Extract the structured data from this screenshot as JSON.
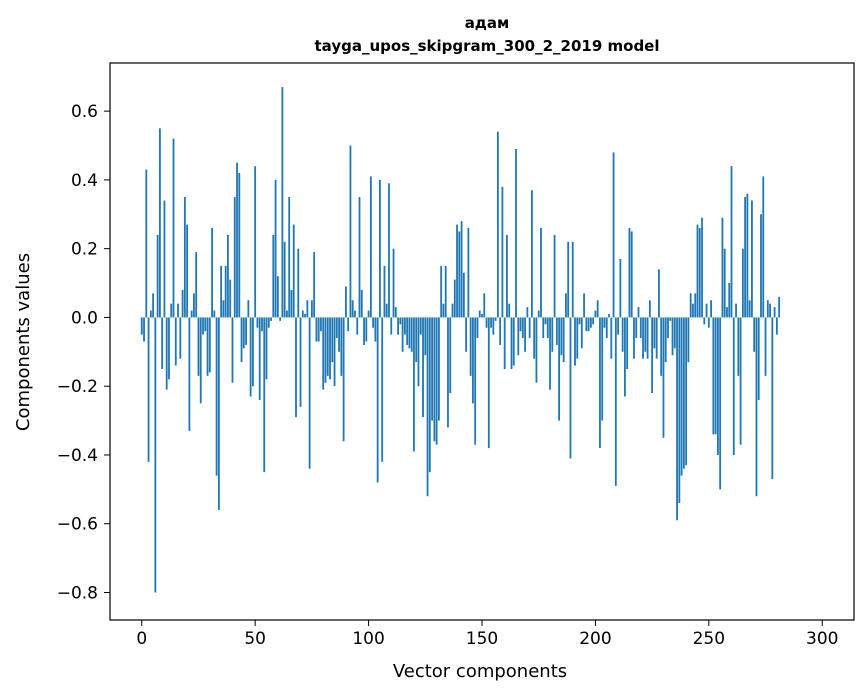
{
  "chart_data": {
    "type": "bar",
    "title": "адам",
    "subtitle": "tayga_upos_skipgram_300_2_2019 model",
    "xlabel": "Vector components",
    "ylabel": "Components values",
    "xlim": [
      -14,
      314
    ],
    "ylim": [
      -0.88,
      0.74
    ],
    "xticks": [
      0,
      50,
      100,
      150,
      200,
      250,
      300
    ],
    "xtick_labels": [
      "0",
      "50",
      "100",
      "150",
      "200",
      "250",
      "300"
    ],
    "yticks": [
      -0.8,
      -0.6,
      -0.4,
      -0.2,
      0.0,
      0.2,
      0.4,
      0.6
    ],
    "ytick_labels": [
      "−0.8",
      "−0.6",
      "−0.4",
      "−0.2",
      "0.0",
      "0.2",
      "0.4",
      "0.6"
    ],
    "bar_color": "#1f77b4",
    "values": [
      -0.05,
      -0.07,
      0.43,
      -0.42,
      0.02,
      0.07,
      -0.8,
      0.24,
      0.55,
      -0.15,
      0.34,
      -0.21,
      -0.18,
      0.04,
      0.52,
      -0.14,
      0.04,
      -0.12,
      0.08,
      0.35,
      0.27,
      -0.33,
      0.02,
      0.07,
      0.19,
      -0.17,
      -0.25,
      -0.05,
      -0.04,
      -0.17,
      -0.16,
      0.26,
      0.02,
      -0.46,
      -0.56,
      0.15,
      0.05,
      0.15,
      0.24,
      0.11,
      -0.19,
      0.35,
      0.45,
      0.42,
      -0.13,
      -0.09,
      -0.08,
      0.05,
      -0.23,
      -0.2,
      0.44,
      -0.03,
      -0.24,
      -0.04,
      -0.45,
      -0.18,
      -0.03,
      -0.01,
      0.24,
      0.4,
      0.12,
      -0.01,
      0.67,
      0.22,
      0.02,
      0.35,
      0.08,
      0.27,
      -0.29,
      0.2,
      -0.26,
      0.02,
      0.01,
      0.05,
      -0.44,
      0.05,
      0.19,
      -0.07,
      -0.07,
      -0.04,
      -0.21,
      -0.19,
      -0.17,
      -0.18,
      -0.13,
      -0.2,
      -0.06,
      -0.1,
      -0.17,
      -0.36,
      0.09,
      -0.04,
      0.5,
      0.05,
      0.02,
      -0.05,
      0.35,
      0.08,
      -0.08,
      -0.07,
      0.02,
      0.41,
      -0.03,
      -0.07,
      -0.48,
      0.4,
      -0.42,
      0.15,
      0.04,
      0.39,
      -0.05,
      0.2,
      0.03,
      -0.05,
      -0.02,
      -0.1,
      -0.05,
      -0.08,
      -0.09,
      -0.1,
      -0.39,
      -0.13,
      -0.2,
      -0.05,
      -0.29,
      -0.11,
      -0.52,
      -0.45,
      -0.3,
      -0.36,
      -0.37,
      -0.3,
      0.15,
      0.04,
      0.15,
      -0.32,
      -0.22,
      0.04,
      0.11,
      0.27,
      0.25,
      0.28,
      0.13,
      -0.1,
      0.26,
      -0.17,
      -0.25,
      -0.37,
      -0.06,
      0.02,
      0.01,
      0.07,
      -0.03,
      -0.38,
      -0.03,
      -0.05,
      -0.01,
      0.54,
      -0.08,
      0.38,
      -0.15,
      0.24,
      0.04,
      -0.15,
      -0.14,
      0.49,
      -0.11,
      -0.04,
      -0.06,
      -0.1,
      0.03,
      -0.06,
      0.37,
      -0.12,
      -0.19,
      0.02,
      0.26,
      -0.06,
      -0.02,
      -0.06,
      -0.21,
      -0.1,
      0.24,
      -0.08,
      -0.3,
      -0.11,
      -0.13,
      0.07,
      0.22,
      -0.41,
      0.22,
      -0.14,
      -0.12,
      -0.02,
      -0.09,
      0.07,
      -0.04,
      -0.04,
      -0.03,
      -0.02,
      0.02,
      0.05,
      -0.38,
      -0.3,
      -0.03,
      -0.06,
      0.01,
      -0.12,
      0.48,
      -0.49,
      -0.05,
      0.17,
      -0.1,
      -0.23,
      -0.15,
      0.26,
      0.25,
      -0.12,
      -0.06,
      0.03,
      -0.06,
      -0.12,
      -0.1,
      -0.12,
      0.05,
      -0.22,
      -0.09,
      -0.12,
      0.14,
      -0.17,
      -0.35,
      -0.13,
      -0.06,
      -0.01,
      -0.11,
      -0.09,
      -0.59,
      -0.54,
      -0.46,
      -0.44,
      -0.43,
      -0.13,
      0.07,
      0.04,
      0.07,
      0.27,
      0.26,
      0.29,
      -0.02,
      0.04,
      -0.03,
      0.05,
      -0.34,
      -0.34,
      -0.4,
      -0.5,
      0.29,
      0.2,
      0.03,
      0.1,
      0.44,
      -0.4,
      0.04,
      -0.17,
      -0.37,
      0.2,
      0.35,
      0.36,
      0.05,
      0.34,
      -0.1,
      -0.52,
      -0.24,
      0.3,
      0.41,
      -0.17,
      0.05,
      0.04,
      -0.47,
      0.03,
      -0.05,
      0.06
    ]
  }
}
